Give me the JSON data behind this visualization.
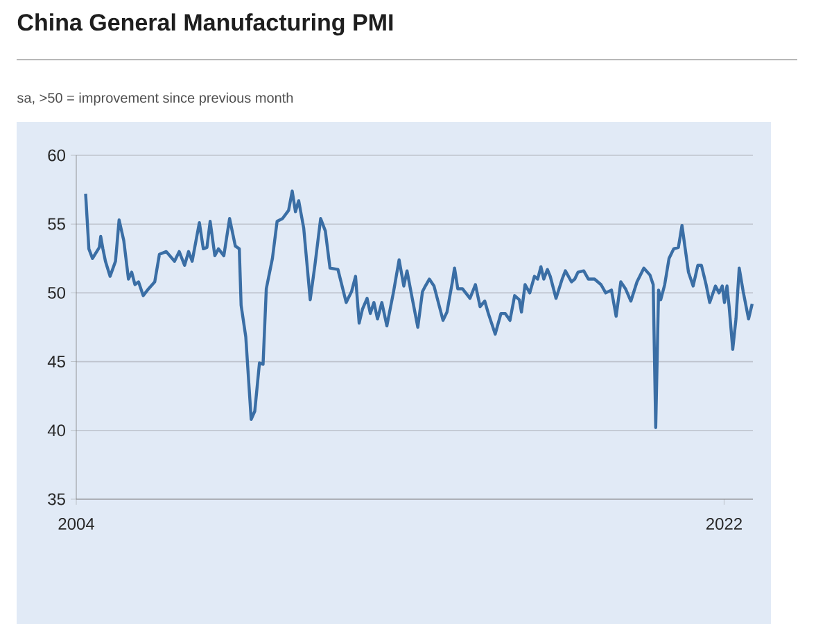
{
  "chart_data": {
    "type": "line",
    "title": "China General Manufacturing PMI",
    "subtitle": "sa, >50 = improvement since previous month",
    "x": [
      2004.26,
      2004.35,
      2004.45,
      2004.64,
      2004.68,
      2004.74,
      2004.81,
      2004.94,
      2005.09,
      2005.19,
      2005.32,
      2005.45,
      2005.54,
      2005.63,
      2005.73,
      2005.86,
      2006.01,
      2006.18,
      2006.31,
      2006.5,
      2006.73,
      2006.86,
      2007.01,
      2007.12,
      2007.22,
      2007.42,
      2007.53,
      2007.63,
      2007.72,
      2007.85,
      2007.95,
      2008.1,
      2008.26,
      2008.42,
      2008.53,
      2008.58,
      2008.71,
      2008.86,
      2008.96,
      2009.09,
      2009.19,
      2009.28,
      2009.45,
      2009.58,
      2009.73,
      2009.9,
      2010.0,
      2010.09,
      2010.18,
      2010.32,
      2010.5,
      2010.63,
      2010.79,
      2010.92,
      2011.05,
      2011.27,
      2011.5,
      2011.65,
      2011.76,
      2011.86,
      2011.95,
      2012.08,
      2012.17,
      2012.27,
      2012.37,
      2012.49,
      2012.63,
      2012.81,
      2012.97,
      2013.1,
      2013.19,
      2013.32,
      2013.49,
      2013.62,
      2013.68,
      2013.81,
      2013.94,
      2014.06,
      2014.19,
      2014.3,
      2014.45,
      2014.51,
      2014.6,
      2014.73,
      2014.94,
      2015.09,
      2015.22,
      2015.35,
      2015.45,
      2015.64,
      2015.8,
      2015.92,
      2016.05,
      2016.18,
      2016.31,
      2016.37,
      2016.47,
      2016.6,
      2016.73,
      2016.82,
      2016.91,
      2016.99,
      2017.09,
      2017.17,
      2017.33,
      2017.5,
      2017.59,
      2017.76,
      2017.85,
      2017.94,
      2018.1,
      2018.23,
      2018.4,
      2018.58,
      2018.71,
      2018.87,
      2019.0,
      2019.13,
      2019.26,
      2019.41,
      2019.58,
      2019.77,
      2019.94,
      2020.03,
      2020.1,
      2020.18,
      2020.24,
      2020.35,
      2020.47,
      2020.6,
      2020.73,
      2020.83,
      2020.92,
      2021.01,
      2021.14,
      2021.27,
      2021.37,
      2021.5,
      2021.6,
      2021.76,
      2021.86,
      2021.95,
      2022.01,
      2022.08,
      2022.14,
      2022.24,
      2022.33,
      2022.42,
      2022.53,
      2022.68,
      2022.78
    ],
    "series": [
      {
        "color": "#3a6ea5",
        "values": [
          57.2,
          53.2,
          52.5,
          53.3,
          54.1,
          53.2,
          52.3,
          51.2,
          52.3,
          55.3,
          53.8,
          51.0,
          51.5,
          50.6,
          50.8,
          49.8,
          50.3,
          50.8,
          52.8,
          53.0,
          52.3,
          53.0,
          52.0,
          53.0,
          52.3,
          55.1,
          53.2,
          53.3,
          55.2,
          52.7,
          53.2,
          52.7,
          55.4,
          53.4,
          53.2,
          49.1,
          46.8,
          40.8,
          41.4,
          44.9,
          44.8,
          50.3,
          52.5,
          55.2,
          55.4,
          56.0,
          57.4,
          55.9,
          56.7,
          54.7,
          49.5,
          52.0,
          55.4,
          54.5,
          51.8,
          51.7,
          49.3,
          50.1,
          51.2,
          47.8,
          48.8,
          49.6,
          48.5,
          49.3,
          48.1,
          49.3,
          47.6,
          50.0,
          52.4,
          50.5,
          51.6,
          49.8,
          47.5,
          50.1,
          50.4,
          51.0,
          50.5,
          49.3,
          48.0,
          48.6,
          50.8,
          51.8,
          50.3,
          50.3,
          49.6,
          50.6,
          49.0,
          49.4,
          48.5,
          47.0,
          48.5,
          48.5,
          48.0,
          49.8,
          49.5,
          48.6,
          50.6,
          50.0,
          51.2,
          51.0,
          51.9,
          51.0,
          51.7,
          51.2,
          49.6,
          51.0,
          51.6,
          50.8,
          51.0,
          51.5,
          51.6,
          51.0,
          51.0,
          50.6,
          50.0,
          50.2,
          48.3,
          50.8,
          50.3,
          49.4,
          50.8,
          51.8,
          51.3,
          50.6,
          40.2,
          50.2,
          49.5,
          50.6,
          52.5,
          53.2,
          53.3,
          54.9,
          53.2,
          51.5,
          50.5,
          52.0,
          52.0,
          50.6,
          49.3,
          50.5,
          50.0,
          50.5,
          49.3,
          50.5,
          49.0,
          45.9,
          48.1,
          51.8,
          50.1,
          48.1,
          49.2
        ]
      }
    ],
    "xlim": [
      2004,
      2022.8
    ],
    "xticks": [
      2004,
      2022
    ],
    "ylim": [
      35,
      60
    ],
    "yticks": [
      35,
      40,
      45,
      50,
      55,
      60
    ],
    "grid": "y"
  }
}
